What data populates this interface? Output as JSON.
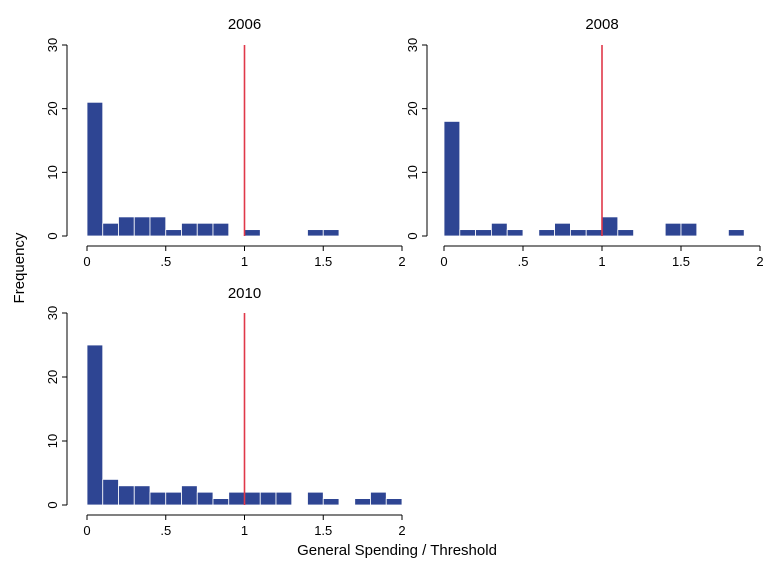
{
  "chart_data": {
    "type": "bar",
    "ylabel": "Frequency",
    "xlabel": "General Spending / Threshold",
    "xlim": [
      0,
      2
    ],
    "ylim": [
      0,
      30
    ],
    "xticks": [
      {
        "value": 0,
        "label": "0"
      },
      {
        "value": 0.5,
        "label": ".5"
      },
      {
        "value": 1,
        "label": "1"
      },
      {
        "value": 1.5,
        "label": "1.5"
      },
      {
        "value": 2,
        "label": "2"
      }
    ],
    "yticks": [
      {
        "value": 0,
        "label": "0"
      },
      {
        "value": 10,
        "label": "10"
      },
      {
        "value": 20,
        "label": "20"
      },
      {
        "value": 30,
        "label": "30"
      }
    ],
    "bar_color": "#2e4593",
    "threshold_line": {
      "value": 1,
      "color": "#e0384a"
    },
    "panels": [
      {
        "title": "2006",
        "bins": [
          {
            "x0": 0.0,
            "x1": 0.1,
            "count": 21
          },
          {
            "x0": 0.1,
            "x1": 0.2,
            "count": 2
          },
          {
            "x0": 0.2,
            "x1": 0.3,
            "count": 3
          },
          {
            "x0": 0.3,
            "x1": 0.4,
            "count": 3
          },
          {
            "x0": 0.4,
            "x1": 0.5,
            "count": 3
          },
          {
            "x0": 0.5,
            "x1": 0.6,
            "count": 1
          },
          {
            "x0": 0.6,
            "x1": 0.7,
            "count": 2
          },
          {
            "x0": 0.7,
            "x1": 0.8,
            "count": 2
          },
          {
            "x0": 0.8,
            "x1": 0.9,
            "count": 2
          },
          {
            "x0": 1.0,
            "x1": 1.1,
            "count": 1
          },
          {
            "x0": 1.4,
            "x1": 1.5,
            "count": 1
          },
          {
            "x0": 1.5,
            "x1": 1.6,
            "count": 1
          }
        ]
      },
      {
        "title": "2008",
        "bins": [
          {
            "x0": 0.0,
            "x1": 0.1,
            "count": 18
          },
          {
            "x0": 0.1,
            "x1": 0.2,
            "count": 1
          },
          {
            "x0": 0.2,
            "x1": 0.3,
            "count": 1
          },
          {
            "x0": 0.3,
            "x1": 0.4,
            "count": 2
          },
          {
            "x0": 0.4,
            "x1": 0.5,
            "count": 1
          },
          {
            "x0": 0.6,
            "x1": 0.7,
            "count": 1
          },
          {
            "x0": 0.7,
            "x1": 0.8,
            "count": 2
          },
          {
            "x0": 0.8,
            "x1": 0.9,
            "count": 1
          },
          {
            "x0": 0.9,
            "x1": 1.0,
            "count": 1
          },
          {
            "x0": 1.0,
            "x1": 1.1,
            "count": 3
          },
          {
            "x0": 1.1,
            "x1": 1.2,
            "count": 1
          },
          {
            "x0": 1.4,
            "x1": 1.5,
            "count": 2
          },
          {
            "x0": 1.5,
            "x1": 1.6,
            "count": 2
          },
          {
            "x0": 1.8,
            "x1": 1.9,
            "count": 1
          }
        ]
      },
      {
        "title": "2010",
        "bins": [
          {
            "x0": 0.0,
            "x1": 0.1,
            "count": 25
          },
          {
            "x0": 0.1,
            "x1": 0.2,
            "count": 4
          },
          {
            "x0": 0.2,
            "x1": 0.3,
            "count": 3
          },
          {
            "x0": 0.3,
            "x1": 0.4,
            "count": 3
          },
          {
            "x0": 0.4,
            "x1": 0.5,
            "count": 2
          },
          {
            "x0": 0.5,
            "x1": 0.6,
            "count": 2
          },
          {
            "x0": 0.6,
            "x1": 0.7,
            "count": 3
          },
          {
            "x0": 0.7,
            "x1": 0.8,
            "count": 2
          },
          {
            "x0": 0.8,
            "x1": 0.9,
            "count": 1
          },
          {
            "x0": 0.9,
            "x1": 1.0,
            "count": 2
          },
          {
            "x0": 1.0,
            "x1": 1.1,
            "count": 2
          },
          {
            "x0": 1.1,
            "x1": 1.2,
            "count": 2
          },
          {
            "x0": 1.2,
            "x1": 1.3,
            "count": 2
          },
          {
            "x0": 1.4,
            "x1": 1.5,
            "count": 2
          },
          {
            "x0": 1.5,
            "x1": 1.6,
            "count": 1
          },
          {
            "x0": 1.7,
            "x1": 1.8,
            "count": 1
          },
          {
            "x0": 1.8,
            "x1": 1.9,
            "count": 2
          },
          {
            "x0": 1.9,
            "x1": 2.0,
            "count": 1
          }
        ]
      }
    ]
  }
}
